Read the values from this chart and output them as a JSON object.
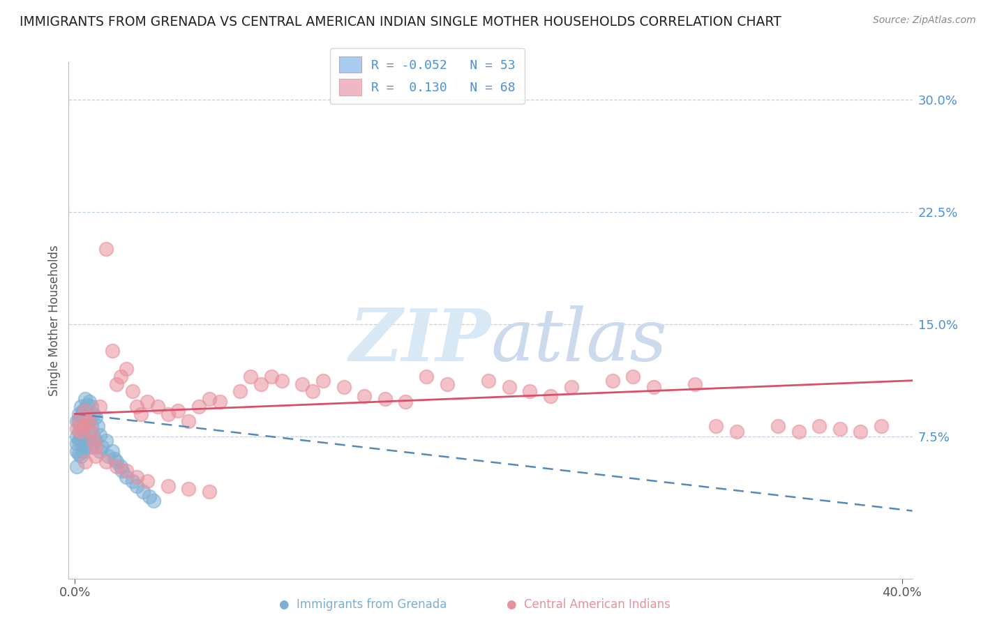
{
  "title": "IMMIGRANTS FROM GRENADA VS CENTRAL AMERICAN INDIAN SINGLE MOTHER HOUSEHOLDS CORRELATION CHART",
  "source": "Source: ZipAtlas.com",
  "ylabel": "Single Mother Households",
  "color_blue": "#7bafd4",
  "color_pink": "#e8909c",
  "line_blue": "#5588bb",
  "line_pink": "#d94f6a",
  "watermark_zip_color": "#d8e8f4",
  "watermark_atlas_color": "#c8d8e8",
  "title_color": "#222222",
  "grid_color": "#c0d0e0",
  "right_tick_color": "#4a90d9",
  "bottom_label_blue": "Immigrants from Grenada",
  "bottom_label_pink": "Central American Indians",
  "blue_x": [
    0.001,
    0.001,
    0.001,
    0.001,
    0.001,
    0.002,
    0.002,
    0.002,
    0.002,
    0.002,
    0.003,
    0.003,
    0.003,
    0.003,
    0.003,
    0.004,
    0.004,
    0.004,
    0.004,
    0.005,
    0.005,
    0.005,
    0.005,
    0.006,
    0.006,
    0.006,
    0.007,
    0.007,
    0.007,
    0.008,
    0.008,
    0.008,
    0.009,
    0.009,
    0.01,
    0.01,
    0.011,
    0.012,
    0.012,
    0.013,
    0.015,
    0.016,
    0.018,
    0.019,
    0.02,
    0.022,
    0.023,
    0.025,
    0.028,
    0.03,
    0.033,
    0.036,
    0.038
  ],
  "blue_y": [
    0.085,
    0.075,
    0.07,
    0.065,
    0.055,
    0.09,
    0.085,
    0.078,
    0.072,
    0.063,
    0.095,
    0.088,
    0.08,
    0.073,
    0.062,
    0.092,
    0.083,
    0.075,
    0.065,
    0.1,
    0.093,
    0.082,
    0.068,
    0.096,
    0.084,
    0.07,
    0.098,
    0.086,
    0.072,
    0.095,
    0.082,
    0.068,
    0.09,
    0.075,
    0.088,
    0.072,
    0.082,
    0.076,
    0.065,
    0.068,
    0.072,
    0.062,
    0.065,
    0.06,
    0.058,
    0.055,
    0.052,
    0.048,
    0.045,
    0.042,
    0.038,
    0.035,
    0.032
  ],
  "pink_x": [
    0.001,
    0.002,
    0.003,
    0.004,
    0.005,
    0.006,
    0.007,
    0.008,
    0.009,
    0.01,
    0.012,
    0.015,
    0.018,
    0.02,
    0.022,
    0.025,
    0.028,
    0.03,
    0.032,
    0.035,
    0.04,
    0.045,
    0.05,
    0.055,
    0.06,
    0.065,
    0.07,
    0.08,
    0.085,
    0.09,
    0.095,
    0.1,
    0.11,
    0.115,
    0.12,
    0.13,
    0.14,
    0.15,
    0.16,
    0.17,
    0.18,
    0.2,
    0.21,
    0.22,
    0.23,
    0.24,
    0.26,
    0.27,
    0.28,
    0.3,
    0.31,
    0.32,
    0.34,
    0.35,
    0.36,
    0.37,
    0.38,
    0.39,
    0.005,
    0.01,
    0.015,
    0.02,
    0.025,
    0.03,
    0.035,
    0.045,
    0.055,
    0.065
  ],
  "pink_y": [
    0.08,
    0.085,
    0.078,
    0.082,
    0.092,
    0.088,
    0.084,
    0.078,
    0.072,
    0.068,
    0.095,
    0.2,
    0.132,
    0.11,
    0.115,
    0.12,
    0.105,
    0.095,
    0.09,
    0.098,
    0.095,
    0.09,
    0.092,
    0.085,
    0.095,
    0.1,
    0.098,
    0.105,
    0.115,
    0.11,
    0.115,
    0.112,
    0.11,
    0.105,
    0.112,
    0.108,
    0.102,
    0.1,
    0.098,
    0.115,
    0.11,
    0.112,
    0.108,
    0.105,
    0.102,
    0.108,
    0.112,
    0.115,
    0.108,
    0.11,
    0.082,
    0.078,
    0.082,
    0.078,
    0.082,
    0.08,
    0.078,
    0.082,
    0.058,
    0.062,
    0.058,
    0.055,
    0.052,
    0.048,
    0.045,
    0.042,
    0.04,
    0.038
  ],
  "xlim": [
    -0.003,
    0.405
  ],
  "ylim": [
    -0.02,
    0.325
  ],
  "ytick_vals": [
    0.0,
    0.075,
    0.15,
    0.225,
    0.3
  ],
  "ytick_labels": [
    "",
    "7.5%",
    "15.0%",
    "22.5%",
    "30.0%"
  ]
}
